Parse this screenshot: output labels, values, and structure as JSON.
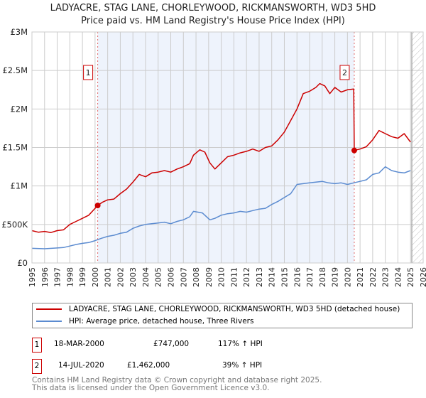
{
  "title": "LADYACRE, STAG LANE, CHORLEYWOOD, RICKMANSWORTH, WD3 5HD",
  "subtitle": "Price paid vs. HM Land Registry's House Price Index (HPI)",
  "colors": {
    "property": "#cc0000",
    "hpi": "#5b8bd0",
    "shade": "#eef3fc"
  },
  "chart_data": {
    "type": "line",
    "title": "LADYACRE, STAG LANE, CHORLEYWOOD, RICKMANSWORTH, WD3 5HD",
    "xlim": [
      1995,
      2026
    ],
    "ylim": [
      0,
      3000000
    ],
    "y_ticks": [
      {
        "v": 0,
        "label": "£0"
      },
      {
        "v": 500000,
        "label": "£500K"
      },
      {
        "v": 1000000,
        "label": "£1M"
      },
      {
        "v": 1500000,
        "label": "£1.5M"
      },
      {
        "v": 2000000,
        "label": "£2M"
      },
      {
        "v": 2500000,
        "label": "£2.5M"
      },
      {
        "v": 3000000,
        "label": "£3M"
      }
    ],
    "x_ticks": [
      "1995",
      "1996",
      "1997",
      "1998",
      "1999",
      "2000",
      "2001",
      "2002",
      "2003",
      "2004",
      "2005",
      "2006",
      "2007",
      "2008",
      "2009",
      "2010",
      "2011",
      "2012",
      "2013",
      "2014",
      "2015",
      "2016",
      "2017",
      "2018",
      "2019",
      "2020",
      "2021",
      "2022",
      "2023",
      "2024",
      "2025",
      "2026"
    ],
    "grid": true,
    "shaded_range": [
      2000.21,
      2020.54
    ],
    "forecast_from": 2025.1,
    "series": [
      {
        "name": "LADYACRE, STAG LANE, CHORLEYWOOD, RICKMANSWORTH, WD3 5HD (detached house)",
        "x": [
          1995,
          1995.5,
          1996,
          1996.5,
          1997,
          1997.5,
          1998,
          1998.5,
          1999,
          1999.5,
          2000.21,
          2000.6,
          2001,
          2001.5,
          2002,
          2002.5,
          2003,
          2003.5,
          2004,
          2004.5,
          2005,
          2005.5,
          2006,
          2006.5,
          2007,
          2007.5,
          2007.8,
          2008.3,
          2008.7,
          2009.1,
          2009.5,
          2010,
          2010.5,
          2011,
          2011.5,
          2012,
          2012.5,
          2013,
          2013.5,
          2014,
          2014.5,
          2015,
          2015.5,
          2016,
          2016.5,
          2017,
          2017.5,
          2017.8,
          2018.2,
          2018.6,
          2019,
          2019.5,
          2020,
          2020.5,
          2020.54,
          2021,
          2021.5,
          2022,
          2022.5,
          2023,
          2023.5,
          2024,
          2024.5,
          2025
        ],
        "y": [
          420000,
          400000,
          410000,
          395000,
          420000,
          430000,
          500000,
          540000,
          580000,
          620000,
          747000,
          790000,
          820000,
          830000,
          900000,
          960000,
          1050000,
          1150000,
          1120000,
          1170000,
          1180000,
          1200000,
          1180000,
          1220000,
          1250000,
          1290000,
          1400000,
          1470000,
          1440000,
          1300000,
          1220000,
          1300000,
          1380000,
          1400000,
          1430000,
          1450000,
          1480000,
          1450000,
          1500000,
          1520000,
          1600000,
          1700000,
          1850000,
          2000000,
          2200000,
          2230000,
          2280000,
          2330000,
          2300000,
          2200000,
          2280000,
          2220000,
          2250000,
          2260000,
          1462000,
          1480000,
          1510000,
          1600000,
          1720000,
          1680000,
          1640000,
          1620000,
          1680000,
          1570000
        ]
      },
      {
        "name": "HPI: Average price, detached house, Three Rivers",
        "x": [
          1995,
          1996,
          1997,
          1997.5,
          1998,
          1998.5,
          1999,
          1999.5,
          2000,
          2000.5,
          2001,
          2001.5,
          2002,
          2002.5,
          2003,
          2003.5,
          2004,
          2004.5,
          2005,
          2005.5,
          2006,
          2006.5,
          2007,
          2007.5,
          2007.8,
          2008.5,
          2009.1,
          2009.5,
          2010,
          2010.5,
          2011,
          2011.5,
          2012,
          2012.5,
          2013,
          2013.5,
          2014,
          2014.5,
          2015,
          2015.5,
          2016,
          2016.5,
          2017,
          2017.5,
          2018,
          2018.5,
          2019,
          2019.5,
          2020,
          2020.5,
          2021,
          2021.5,
          2022,
          2022.5,
          2023,
          2023.5,
          2024,
          2024.5,
          2025
        ],
        "y": [
          190000,
          185000,
          195000,
          200000,
          220000,
          240000,
          255000,
          265000,
          290000,
          320000,
          345000,
          360000,
          385000,
          400000,
          450000,
          480000,
          500000,
          510000,
          520000,
          530000,
          510000,
          540000,
          560000,
          600000,
          670000,
          650000,
          560000,
          580000,
          620000,
          640000,
          650000,
          670000,
          660000,
          680000,
          700000,
          710000,
          760000,
          800000,
          850000,
          900000,
          1020000,
          1030000,
          1040000,
          1050000,
          1060000,
          1040000,
          1030000,
          1040000,
          1020000,
          1040000,
          1060000,
          1080000,
          1150000,
          1170000,
          1250000,
          1200000,
          1180000,
          1170000,
          1200000
        ]
      }
    ],
    "annotations": [
      {
        "label": "1",
        "x": 2000.21,
        "y": 747000
      },
      {
        "label": "2",
        "x": 2020.54,
        "y": 1462000
      }
    ]
  },
  "legend": {
    "property": "LADYACRE, STAG LANE, CHORLEYWOOD, RICKMANSWORTH, WD3 5HD (detached house)",
    "hpi": "HPI: Average price, detached house, Three Rivers"
  },
  "transactions": [
    {
      "num": "1",
      "date": "18-MAR-2000",
      "price": "£747,000",
      "hpi": "117% ↑ HPI"
    },
    {
      "num": "2",
      "date": "14-JUL-2020",
      "price": "£1,462,000",
      "hpi": "39% ↑ HPI"
    }
  ],
  "footer": {
    "line1": "Contains HM Land Registry data © Crown copyright and database right 2025.",
    "line2": "This data is licensed under the Open Government Licence v3.0."
  }
}
